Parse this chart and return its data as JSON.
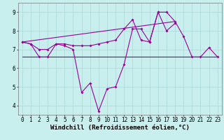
{
  "x": [
    0,
    1,
    2,
    3,
    4,
    5,
    6,
    7,
    8,
    9,
    10,
    11,
    12,
    13,
    14,
    15,
    16,
    17,
    18,
    19,
    20,
    21,
    22,
    23
  ],
  "line1_y": [
    7.4,
    7.3,
    7.0,
    7.0,
    7.3,
    7.3,
    7.2,
    7.2,
    7.2,
    7.3,
    7.4,
    7.5,
    8.1,
    8.6,
    7.5,
    7.4,
    9.0,
    9.0,
    8.5,
    7.7,
    6.6,
    6.6,
    7.1,
    6.6
  ],
  "line2_y": [
    7.4,
    7.3,
    6.6,
    6.6,
    7.3,
    7.2,
    7.0,
    4.7,
    5.2,
    3.7,
    4.9,
    5.0,
    6.2,
    8.1,
    8.1,
    7.4,
    9.0,
    8.0,
    8.4,
    null,
    null,
    null,
    null,
    null
  ],
  "line3_x": [
    0,
    23
  ],
  "line3_y": [
    6.6,
    6.6
  ],
  "line4_x": [
    0,
    18
  ],
  "line4_y": [
    7.4,
    8.5
  ],
  "background_color": "#c8eeee",
  "line_color": "#990099",
  "grid_color": "#aad8d8",
  "xlabel": "Windchill (Refroidissement éolien,°C)",
  "xlim": [
    -0.5,
    23.5
  ],
  "ylim": [
    3.5,
    9.5
  ],
  "yticks": [
    4,
    5,
    6,
    7,
    8,
    9
  ],
  "xticks": [
    0,
    1,
    2,
    3,
    4,
    5,
    6,
    7,
    8,
    9,
    10,
    11,
    12,
    13,
    14,
    15,
    16,
    17,
    18,
    19,
    20,
    21,
    22,
    23
  ],
  "markersize": 2.0,
  "linewidth": 0.8,
  "xlabel_fontsize": 6.5,
  "tick_fontsize": 5.5
}
